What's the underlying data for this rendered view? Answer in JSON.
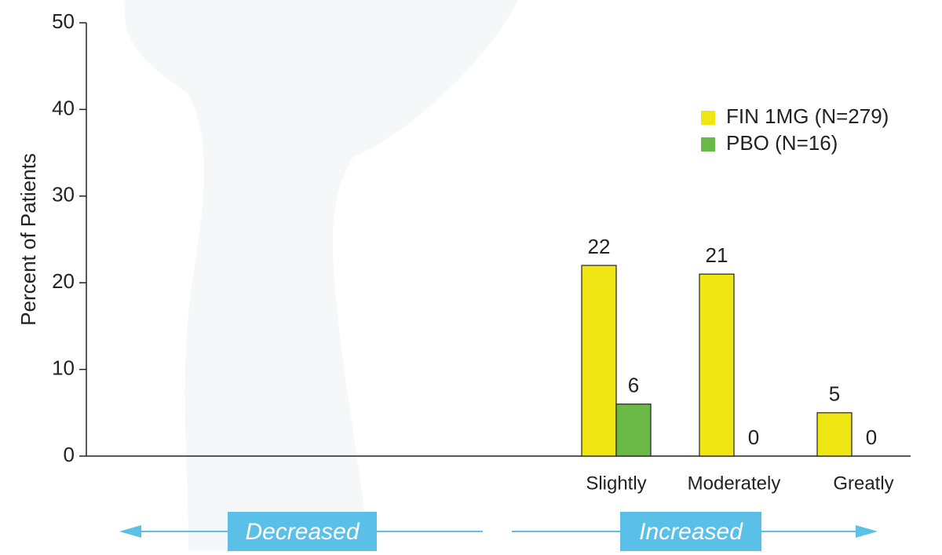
{
  "chart_data": {
    "type": "bar",
    "y_label": "Percent of Patients",
    "categories": [
      null,
      null,
      null,
      "Slightly",
      "Moderately",
      "Greatly"
    ],
    "series": [
      {
        "name": "FIN 1MG (N=279)",
        "color": "#f0e614",
        "values": [
          null,
          null,
          null,
          22,
          21,
          5
        ]
      },
      {
        "name": "PBO (N=16)",
        "color": "#6ab845",
        "values": [
          null,
          null,
          null,
          6,
          0,
          0
        ]
      }
    ],
    "ylim": [
      0,
      50
    ],
    "yticks": [
      0,
      10,
      20,
      30,
      40,
      50
    ],
    "annotations": [
      "Decreased",
      "Increased"
    ]
  }
}
